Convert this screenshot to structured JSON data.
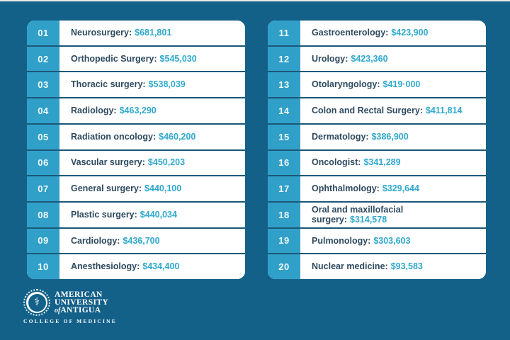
{
  "colors": {
    "background": "#136189",
    "rank_strip": "#31a0c9",
    "row_background": "#ffffff",
    "specialty_text": "#2e4a5f",
    "salary_text": "#2fa9ce",
    "row_separator": "#1a5878",
    "logo_text": "#ffffff"
  },
  "list": {
    "left": [
      {
        "rank": "01",
        "name_label": "Neurosurgery:",
        "value": "$681,801"
      },
      {
        "rank": "02",
        "name_label": "Orthopedic Surgery:",
        "value": "$545,030"
      },
      {
        "rank": "03",
        "name_label": "Thoracic surgery:",
        "value": "$538,039"
      },
      {
        "rank": "04",
        "name_label": "Radiology:",
        "value": "$463,290"
      },
      {
        "rank": "05",
        "name_label": "Radiation oncology:",
        "value": "$460,200"
      },
      {
        "rank": "06",
        "name_label": "Vascular surgery:",
        "value": "$450,203"
      },
      {
        "rank": "07",
        "name_label": "General surgery:",
        "value": "$440,100"
      },
      {
        "rank": "08",
        "name_label": "Plastic surgery:",
        "value": "$440,034"
      },
      {
        "rank": "09",
        "name_label": "Cardiology:",
        "value": "$436,700"
      },
      {
        "rank": "10",
        "name_label": "Anesthesiology:",
        "value": "$434,400"
      }
    ],
    "right": [
      {
        "rank": "11",
        "name_label": "Gastroenterology:",
        "value": "$423,900"
      },
      {
        "rank": "12",
        "name_label": "Urology:",
        "value": "$423,360"
      },
      {
        "rank": "13",
        "name_label": "Otolaryngology:",
        "value": "$419·000"
      },
      {
        "rank": "14",
        "name_label": "Colon and Rectal Surgery:",
        "value": "$411,814"
      },
      {
        "rank": "15",
        "name_label": "Dermatology:",
        "value": "$386,900"
      },
      {
        "rank": "16",
        "name_label": "Oncologist:",
        "value": "$341,289"
      },
      {
        "rank": "17",
        "name_label": "Ophthalmology:",
        "value": "$329,644"
      },
      {
        "rank": "18",
        "name_label": "Oral and maxillofacial\nsurgery:",
        "value": "$314,578"
      },
      {
        "rank": "19",
        "name_label": "Pulmonology:",
        "value": "$303,603"
      },
      {
        "rank": "20",
        "name_label": "Nuclear medicine:",
        "value": "$93,583"
      }
    ]
  },
  "logo": {
    "seal_glyph": "⚕",
    "line1": "AMERICAN",
    "line2": "UNIVERSITY",
    "of": "of",
    "line3": "ANTIGUA",
    "subtitle": "COLLEGE OF MEDICINE"
  },
  "chart_data": {
    "type": "table",
    "title": "",
    "columns": [
      "rank",
      "specialty",
      "salary_usd"
    ],
    "rows": [
      [
        1,
        "Neurosurgery",
        681801
      ],
      [
        2,
        "Orthopedic Surgery",
        545030
      ],
      [
        3,
        "Thoracic surgery",
        538039
      ],
      [
        4,
        "Radiology",
        463290
      ],
      [
        5,
        "Radiation oncology",
        460200
      ],
      [
        6,
        "Vascular surgery",
        450203
      ],
      [
        7,
        "General surgery",
        440100
      ],
      [
        8,
        "Plastic surgery",
        440034
      ],
      [
        9,
        "Cardiology",
        436700
      ],
      [
        10,
        "Anesthesiology",
        434400
      ],
      [
        11,
        "Gastroenterology",
        423900
      ],
      [
        12,
        "Urology",
        423360
      ],
      [
        13,
        "Otolaryngology",
        419000
      ],
      [
        14,
        "Colon and Rectal Surgery",
        411814
      ],
      [
        15,
        "Dermatology",
        386900
      ],
      [
        16,
        "Oncologist",
        341289
      ],
      [
        17,
        "Ophthalmology",
        329644
      ],
      [
        18,
        "Oral and maxillofacial surgery",
        314578
      ],
      [
        19,
        "Pulmonology",
        303603
      ],
      [
        20,
        "Nuclear medicine",
        93583
      ]
    ]
  }
}
